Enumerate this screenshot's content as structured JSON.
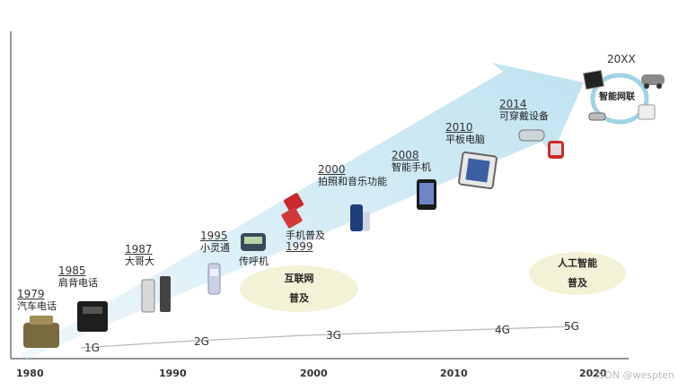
{
  "events": [
    {
      "year": "1979",
      "label": "汽车电话"
    },
    {
      "year": "1985",
      "label": "肩背电话"
    },
    {
      "year": "1987",
      "label": "大哥大"
    },
    {
      "year": "1995",
      "label": "小灵通"
    },
    {
      "year": "1999",
      "label": "手机普及"
    },
    {
      "year": "",
      "label": "传呼机"
    },
    {
      "year": "2000",
      "label": "拍照和音乐功能"
    },
    {
      "year": "2008",
      "label": "智能手机"
    },
    {
      "year": "2010",
      "label": "平板电脑"
    },
    {
      "year": "2014",
      "label": "可穿戴设备"
    },
    {
      "year": "20XX",
      "label": "智能网联"
    }
  ],
  "generations": [
    "1G",
    "2G",
    "3G",
    "4G",
    "5G"
  ],
  "axis_years": [
    "1980",
    "1990",
    "2000",
    "2010",
    "2020"
  ],
  "bubbles": [
    {
      "line1": "互联网",
      "line2": "普及"
    },
    {
      "line1": "人工智能",
      "line2": "普及"
    }
  ],
  "watermark": "CSDN @wespten",
  "colors": {
    "arrow": "#cfe9f3",
    "bubble_fill": "#f3f2d6",
    "gen_line": "#b9b9b9"
  }
}
